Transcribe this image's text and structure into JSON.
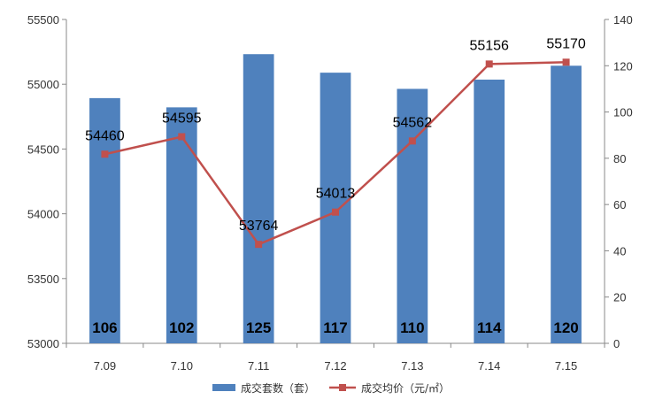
{
  "chart_data": {
    "type": "bar",
    "categories": [
      "7.09",
      "7.10",
      "7.11",
      "7.12",
      "7.13",
      "7.14",
      "7.15"
    ],
    "series": [
      {
        "name": "成交套数（套）",
        "type": "bar",
        "axis": "right",
        "values": [
          106,
          102,
          125,
          117,
          110,
          114,
          120
        ],
        "color": "#4F81BD"
      },
      {
        "name": "成交均价（元/㎡）",
        "type": "line",
        "axis": "left",
        "values": [
          54460,
          54595,
          53764,
          54013,
          54562,
          55156,
          55170
        ],
        "color": "#C0504D"
      }
    ],
    "y_left": {
      "range": [
        53000,
        55500
      ],
      "ticks": [
        "53000",
        "53500",
        "54000",
        "54500",
        "55000",
        "55500"
      ]
    },
    "y_right": {
      "range": [
        0,
        140
      ],
      "ticks": [
        "0",
        "20",
        "40",
        "60",
        "80",
        "100",
        "120",
        "140"
      ]
    },
    "grid": false,
    "legend_position": "bottom"
  }
}
